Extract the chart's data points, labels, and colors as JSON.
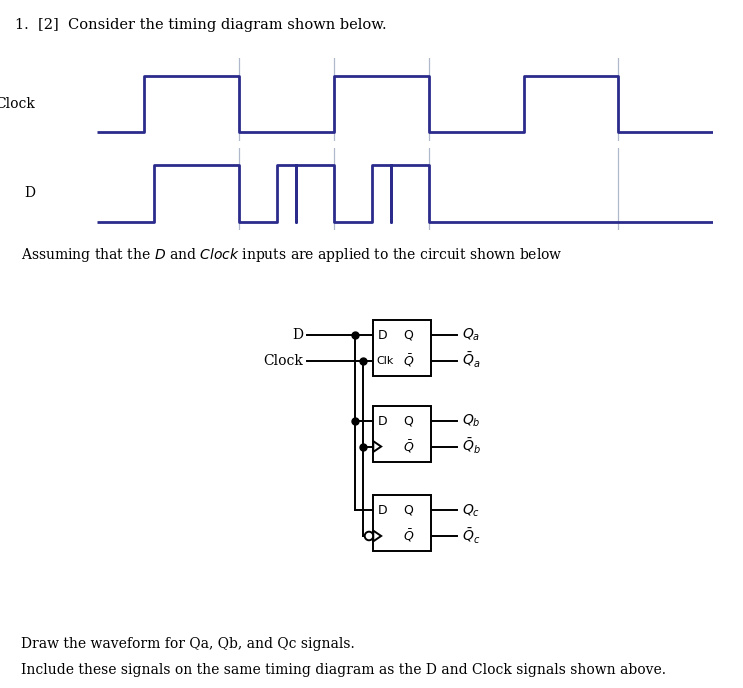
{
  "title": "1.  [2]  Consider the timing diagram shown below.",
  "text_assuming": "Assuming that the ‘D’ and ‘Clock’ inputs are applied to the circuit shown below",
  "text_draw": "Draw the waveform for Qa, Qb, and Qc signals.",
  "text_include": "Include these signals on the same timing diagram as the D and Clock signals shown above.",
  "bg_color": "#ffffff",
  "line_color": "#2b2b8c",
  "grid_color": "#b0b8cc",
  "clock_times": [
    0,
    1,
    1,
    3,
    3,
    5,
    5,
    7,
    7,
    9,
    9,
    11,
    11,
    13
  ],
  "clock_signal": [
    0,
    0,
    1,
    1,
    0,
    0,
    1,
    1,
    0,
    0,
    1,
    1,
    0,
    0
  ],
  "d_times": [
    0,
    1.2,
    1.2,
    3.0,
    3.0,
    3.8,
    3.8,
    4.2,
    4.2,
    5.0,
    5.0,
    5.8,
    5.8,
    6.2,
    6.2,
    7.0,
    7.0,
    13
  ],
  "d_signal": [
    0,
    0,
    1,
    1,
    0,
    0,
    1,
    0,
    1,
    1,
    0,
    0,
    1,
    0,
    1,
    1,
    0,
    0
  ],
  "vline_positions": [
    3,
    5,
    7,
    11
  ],
  "total_time": 13,
  "clock_label": "Clock",
  "d_label": "D"
}
